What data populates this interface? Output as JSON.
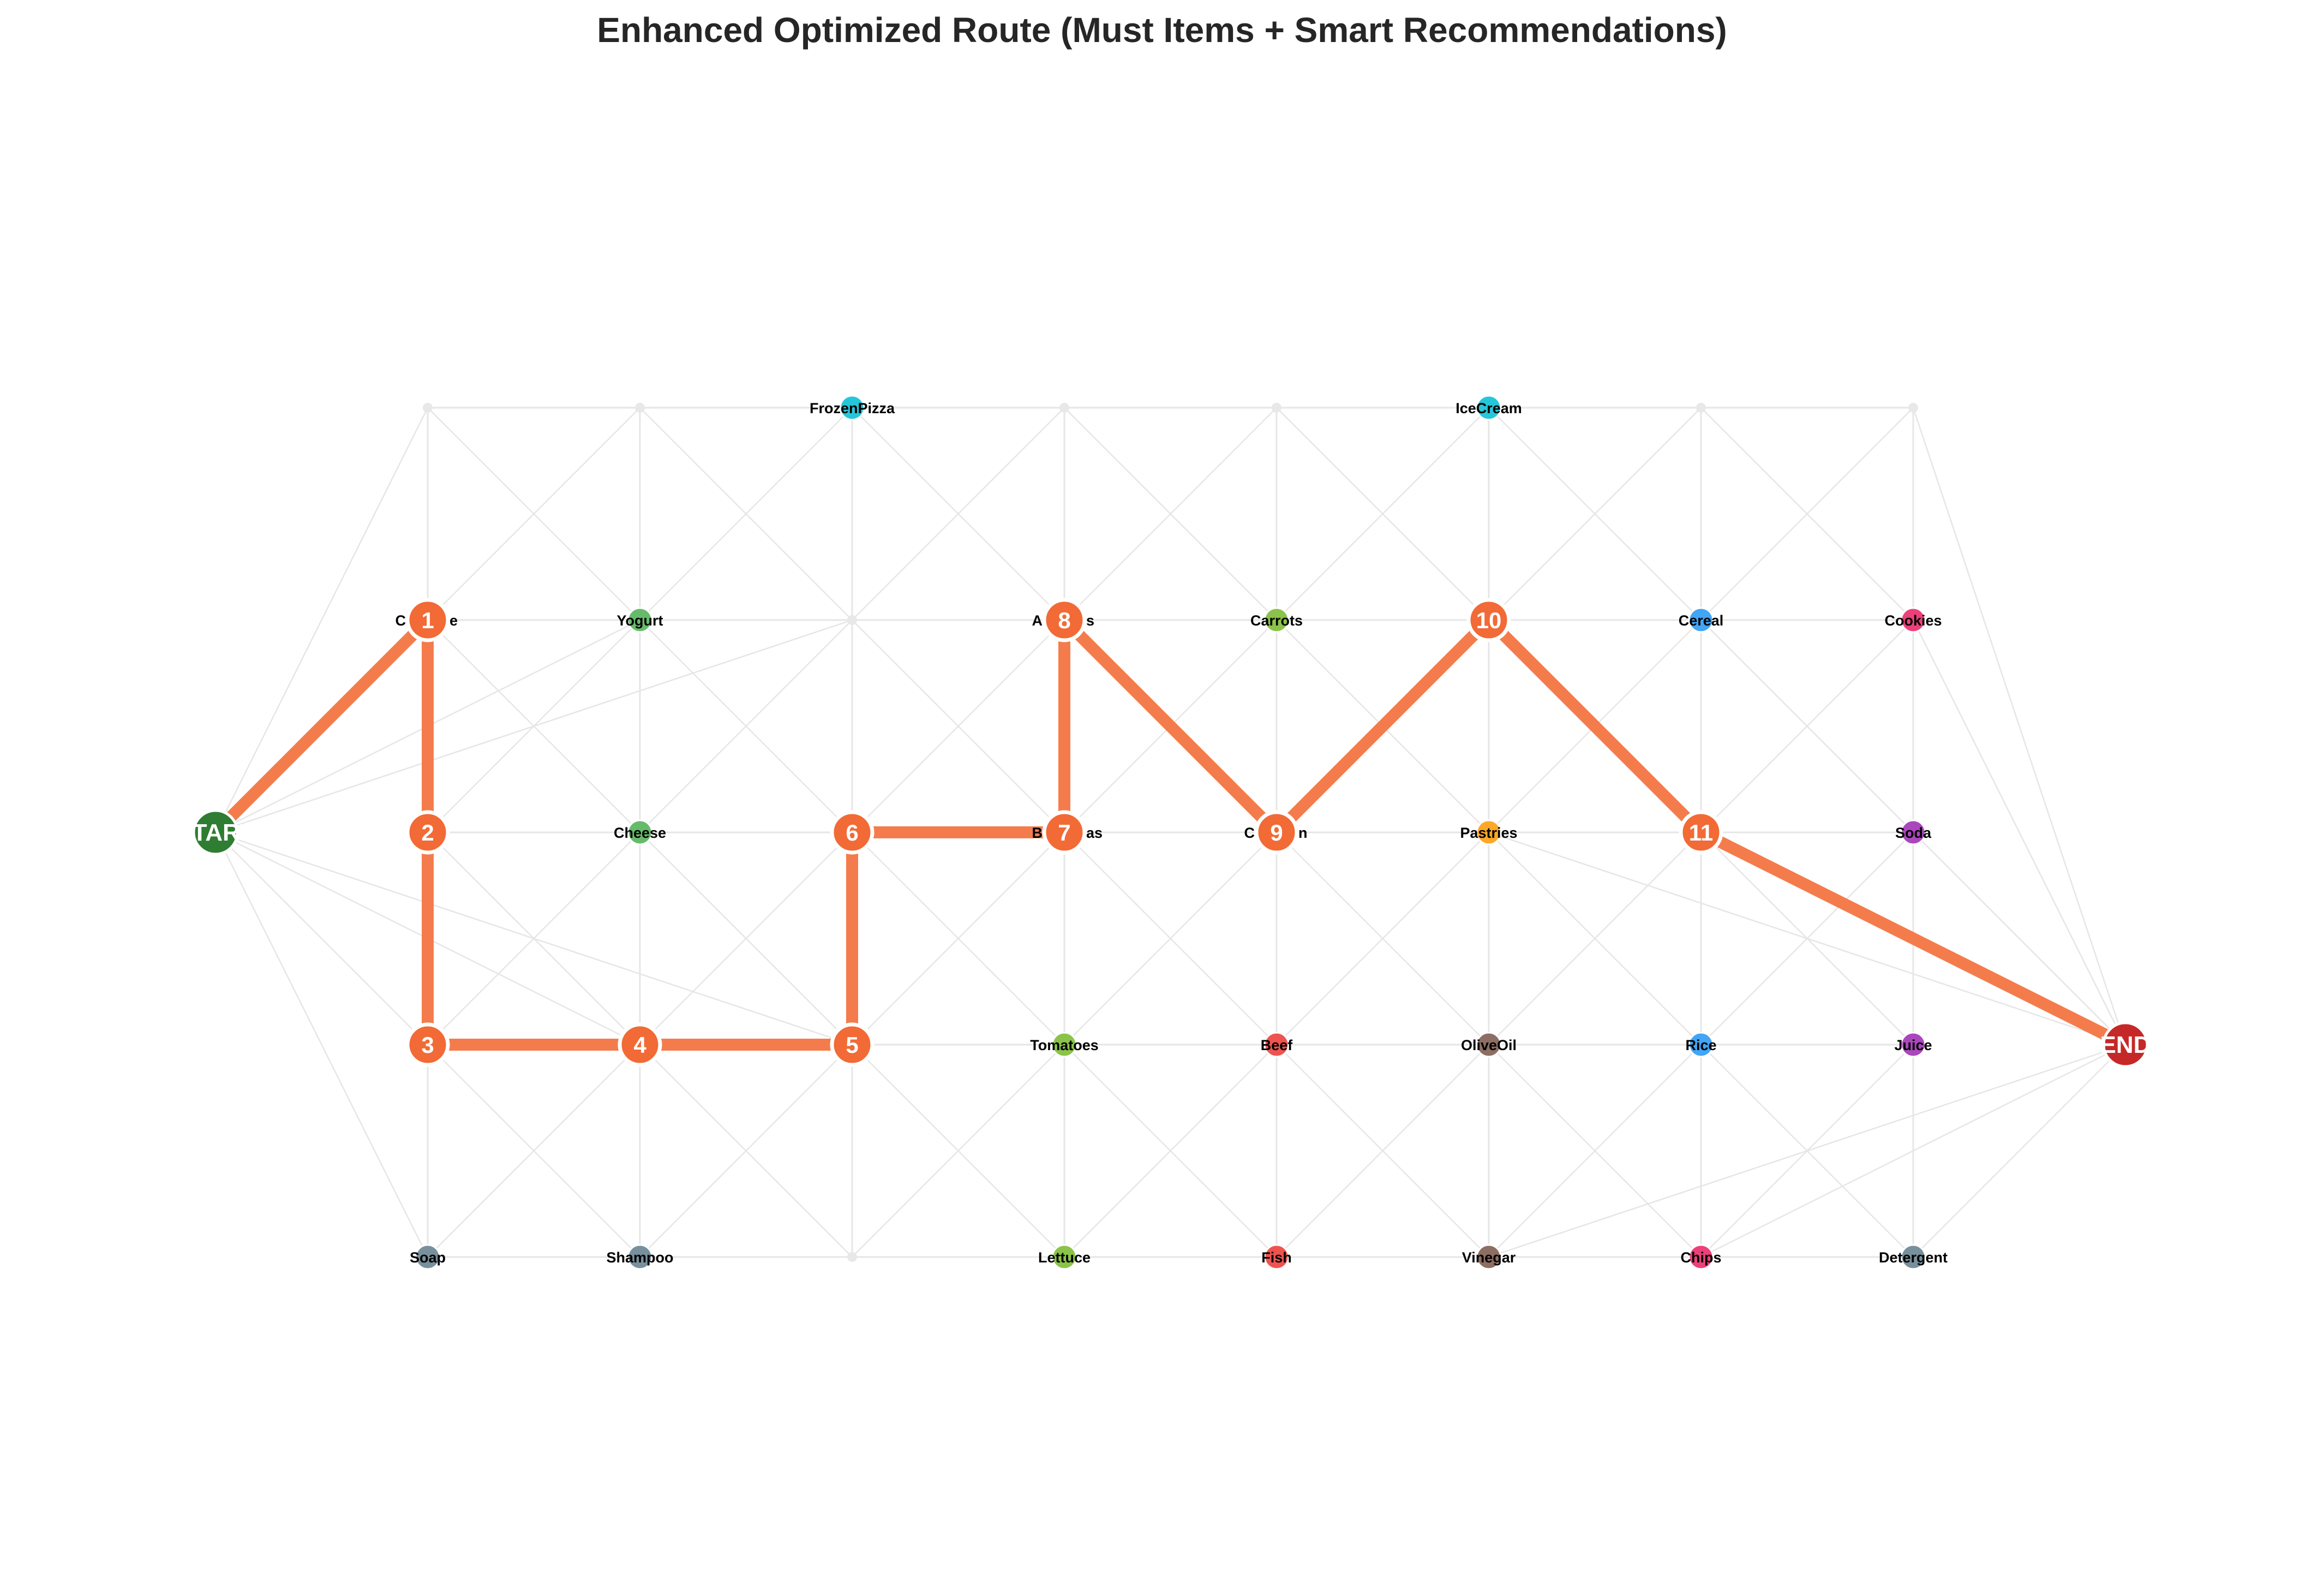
{
  "title": "Enhanced Optimized Route (Must Items + Smart Recommendations)",
  "colors": {
    "route": "#f47c4c",
    "route_stop": "#f26a35",
    "edge": "#e6e6e6",
    "empty_node": "#e8e8e8",
    "start": "#2e7d32",
    "end": "#c62828"
  },
  "start": {
    "label": "START",
    "col": 0,
    "row": 2
  },
  "end": {
    "label": "END",
    "col": 9,
    "row": 3
  },
  "items": [
    {
      "name": "FrozenPizza",
      "col": 3,
      "row": 0,
      "color": "#26c6da"
    },
    {
      "name": "IceCream",
      "col": 6,
      "row": 0,
      "color": "#26c6da"
    },
    {
      "name": "Yogurt",
      "col": 2,
      "row": 1,
      "color": "#66bb6a"
    },
    {
      "name": "Carrots",
      "col": 5,
      "row": 1,
      "color": "#8bc34a"
    },
    {
      "name": "Cereal",
      "col": 7,
      "row": 1,
      "color": "#42a5f5"
    },
    {
      "name": "Cookies",
      "col": 8,
      "row": 1,
      "color": "#ec407a"
    },
    {
      "name": "Cheese",
      "col": 2,
      "row": 2,
      "color": "#66bb6a"
    },
    {
      "name": "Pastries",
      "col": 6,
      "row": 2,
      "color": "#ffa726"
    },
    {
      "name": "Soda",
      "col": 8,
      "row": 2,
      "color": "#ab47bc"
    },
    {
      "name": "Tomatoes",
      "col": 4,
      "row": 3,
      "color": "#8bc34a"
    },
    {
      "name": "Beef",
      "col": 5,
      "row": 3,
      "color": "#ef5350"
    },
    {
      "name": "OliveOil",
      "col": 6,
      "row": 3,
      "color": "#8d6e63"
    },
    {
      "name": "Rice",
      "col": 7,
      "row": 3,
      "color": "#42a5f5"
    },
    {
      "name": "Juice",
      "col": 8,
      "row": 3,
      "color": "#ab47bc"
    },
    {
      "name": "Soap",
      "col": 1,
      "row": 4,
      "color": "#78909c"
    },
    {
      "name": "Shampoo",
      "col": 2,
      "row": 4,
      "color": "#78909c"
    },
    {
      "name": "Lettuce",
      "col": 4,
      "row": 4,
      "color": "#8bc34a"
    },
    {
      "name": "Fish",
      "col": 5,
      "row": 4,
      "color": "#ef5350"
    },
    {
      "name": "Vinegar",
      "col": 6,
      "row": 4,
      "color": "#8d6e63"
    },
    {
      "name": "Chips",
      "col": 7,
      "row": 4,
      "color": "#ec407a"
    },
    {
      "name": "Detergent",
      "col": 8,
      "row": 4,
      "color": "#78909c"
    }
  ],
  "route": [
    {
      "stop": "1",
      "col": 1,
      "row": 1
    },
    {
      "stop": "2",
      "col": 1,
      "row": 2
    },
    {
      "stop": "3",
      "col": 1,
      "row": 3
    },
    {
      "stop": "4",
      "col": 2,
      "row": 3
    },
    {
      "stop": "5",
      "col": 3,
      "row": 3
    },
    {
      "stop": "6",
      "col": 3,
      "row": 2
    },
    {
      "stop": "7",
      "col": 4,
      "row": 2
    },
    {
      "stop": "8",
      "col": 4,
      "row": 1
    },
    {
      "stop": "9",
      "col": 5,
      "row": 2
    },
    {
      "stop": "10",
      "col": 6,
      "row": 1
    },
    {
      "stop": "11",
      "col": 7,
      "row": 2
    }
  ],
  "stop_labels": [
    {
      "text": "C",
      "col": 1,
      "row": 1,
      "side": "left"
    },
    {
      "text": "e",
      "col": 1,
      "row": 1,
      "side": "right"
    },
    {
      "text": "A",
      "col": 4,
      "row": 1,
      "side": "left"
    },
    {
      "text": "s",
      "col": 4,
      "row": 1,
      "side": "right"
    },
    {
      "text": "B",
      "col": 4,
      "row": 2,
      "side": "left"
    },
    {
      "text": "as",
      "col": 4,
      "row": 2,
      "side": "right"
    },
    {
      "text": "C",
      "col": 5,
      "row": 2,
      "side": "left"
    },
    {
      "text": "n",
      "col": 5,
      "row": 2,
      "side": "right"
    }
  ]
}
